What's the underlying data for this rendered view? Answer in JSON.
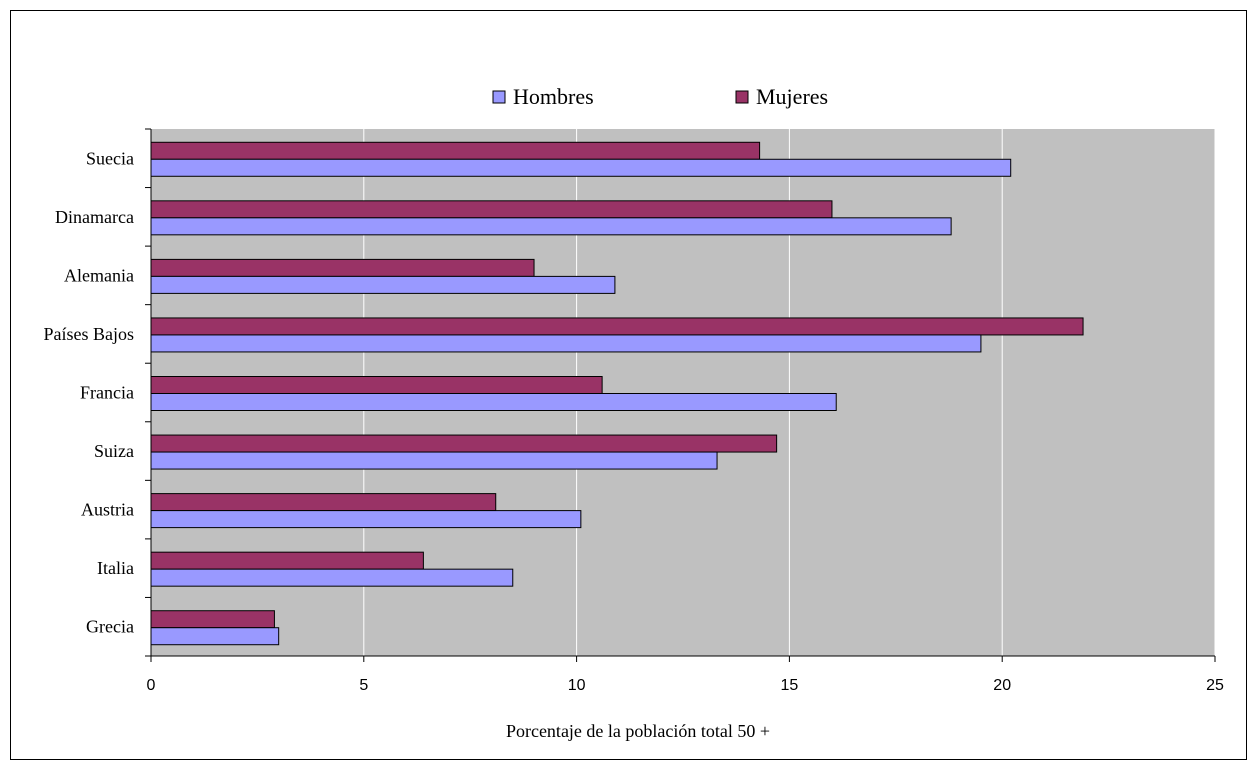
{
  "chart_data": {
    "type": "bar",
    "orientation": "horizontal",
    "categories": [
      "Suecia",
      "Dinamarca",
      "Alemania",
      "Países Bajos",
      "Francia",
      "Suiza",
      "Austria",
      "Italia",
      "Grecia"
    ],
    "series": [
      {
        "name": "Hombres",
        "color": "#9999ff",
        "values": [
          20.2,
          18.8,
          10.9,
          19.5,
          16.1,
          13.3,
          10.1,
          8.5,
          3.0
        ]
      },
      {
        "name": "Mujeres",
        "color": "#993366",
        "values": [
          14.3,
          16.0,
          9.0,
          21.9,
          10.6,
          14.7,
          8.1,
          6.4,
          2.9
        ]
      }
    ],
    "title": "",
    "xlabel": "Porcentaje de la población total 50 +",
    "ylabel": "",
    "xlim": [
      0,
      25
    ],
    "xticks": [
      0,
      5,
      10,
      15,
      20,
      25
    ],
    "xtick_labels": [
      "0",
      "5",
      "10",
      "15",
      "20",
      "25"
    ],
    "grid": "vertical",
    "legend_position": "top",
    "plot_background": "#c0c0c0"
  }
}
